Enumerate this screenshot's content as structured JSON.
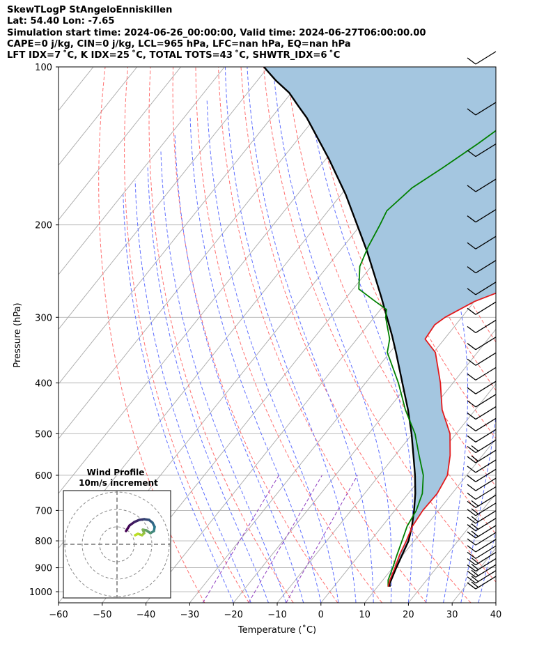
{
  "header": {
    "line1": "SkewTLogP StAngeloEnniskillen",
    "line2": "Lat: 54.40   Lon: -7.65",
    "line3": "Simulation start time: 2024-06-26_00:00:00, Valid time: 2024-06-27T06:00:00.00",
    "line4": "CAPE=0 j/kg, CIN=0 j/kg, LCL=965 hPa, LFC=nan hPa, EQ=nan hPa",
    "line5": "LFT IDX=7 ˚C, K IDX=25 ˚C, TOTAL TOTS=43 ˚C, SHWTR_IDX=6 ˚C"
  },
  "chart_data": {
    "type": "line",
    "subtype": "skew-t log-p diagram",
    "xlabel": "Temperature (˚C)",
    "ylabel": "Pressure (hPa)",
    "xlim": [
      -60,
      40
    ],
    "ylim": [
      1050,
      100
    ],
    "y_scale": "log",
    "xticks": [
      -60,
      -50,
      -40,
      -30,
      -20,
      -10,
      0,
      10,
      20,
      30,
      40
    ],
    "yticks": [
      100,
      200,
      300,
      400,
      500,
      600,
      700,
      800,
      900,
      1000
    ],
    "grid": true,
    "series": [
      {
        "role": "temperature",
        "color": "#e31a1c",
        "points": [
          [
            12.4,
            978
          ],
          [
            11.6,
            950
          ],
          [
            10.5,
            900
          ],
          [
            9.2,
            850
          ],
          [
            8.2,
            800
          ],
          [
            6.9,
            750
          ],
          [
            6.4,
            700
          ],
          [
            6.6,
            650
          ],
          [
            5.6,
            600
          ],
          [
            2.6,
            550
          ],
          [
            -1.4,
            500
          ],
          [
            -7.6,
            450
          ],
          [
            -12.9,
            400
          ],
          [
            -19.6,
            350
          ],
          [
            -24.4,
            330
          ],
          [
            -24.8,
            310
          ],
          [
            -23.8,
            300
          ],
          [
            -20.0,
            280
          ],
          [
            -14.9,
            265
          ],
          [
            -12.2,
            250
          ],
          [
            -9.9,
            230
          ],
          [
            -7.0,
            210
          ],
          [
            -6.0,
            200
          ],
          [
            -3.5,
            185
          ],
          [
            -2.6,
            170
          ],
          [
            -2.0,
            155
          ],
          [
            -1.3,
            145
          ],
          [
            -1.5,
            135
          ],
          [
            0.4,
            125
          ],
          [
            1.8,
            115
          ],
          [
            1.4,
            108
          ],
          [
            3.0,
            100
          ]
        ]
      },
      {
        "role": "dewpoint",
        "color": "#008000",
        "points": [
          [
            12.4,
            978
          ],
          [
            11.2,
            950
          ],
          [
            10.0,
            900
          ],
          [
            8.6,
            850
          ],
          [
            7.2,
            800
          ],
          [
            5.7,
            750
          ],
          [
            4.9,
            700
          ],
          [
            3.2,
            650
          ],
          [
            0.1,
            600
          ],
          [
            -4.5,
            550
          ],
          [
            -9.4,
            500
          ],
          [
            -16.0,
            450
          ],
          [
            -22.5,
            400
          ],
          [
            -30.6,
            350
          ],
          [
            -32.5,
            330
          ],
          [
            -37.4,
            300
          ],
          [
            -38.6,
            290
          ],
          [
            -42.6,
            280
          ],
          [
            -48.7,
            265
          ],
          [
            -52.6,
            240
          ],
          [
            -54.3,
            220
          ],
          [
            -55.6,
            200
          ],
          [
            -56.6,
            188
          ],
          [
            -55.0,
            170
          ],
          [
            -51.5,
            155
          ],
          [
            -48.0,
            140
          ],
          [
            -44.6,
            125
          ],
          [
            -41.5,
            112
          ],
          [
            -38.5,
            100
          ]
        ]
      },
      {
        "role": "parcel_profile",
        "color": "#000000",
        "points": [
          [
            12.8,
            978
          ],
          [
            12.2,
            965
          ],
          [
            10.8,
            900
          ],
          [
            9.8,
            850
          ],
          [
            8.7,
            800
          ],
          [
            6.8,
            750
          ],
          [
            4.4,
            700
          ],
          [
            1.6,
            650
          ],
          [
            -1.8,
            600
          ],
          [
            -5.8,
            550
          ],
          [
            -10.2,
            500
          ],
          [
            -15.4,
            450
          ],
          [
            -21.6,
            400
          ],
          [
            -28.6,
            350
          ],
          [
            -32.6,
            325
          ],
          [
            -37.1,
            300
          ],
          [
            -42.0,
            275
          ],
          [
            -47.5,
            250
          ],
          [
            -53.6,
            225
          ],
          [
            -60.8,
            200
          ],
          [
            -69.0,
            175
          ],
          [
            -79.2,
            150
          ],
          [
            -91.9,
            125
          ],
          [
            -95.8,
            119
          ],
          [
            -100.5,
            112
          ],
          [
            -105.9,
            106
          ],
          [
            -111.0,
            100
          ]
        ]
      }
    ],
    "shaded_region": {
      "between": [
        "parcel_profile",
        "temperature"
      ],
      "color": "#a4c6e0"
    },
    "background_lines": {
      "isotherms": {
        "color": "#aaaaaa",
        "step": 10
      },
      "dry_adiabats": {
        "color": "#ff7070",
        "style": "dashed"
      },
      "moist_adiabats": {
        "color": "#6070ff",
        "style": "dashed"
      },
      "mixing_ratio": {
        "color": "#9040c0",
        "style": "dashed"
      }
    },
    "wind_barbs_hpa": [
      1000,
      975,
      950,
      925,
      900,
      875,
      850,
      825,
      800,
      775,
      750,
      725,
      700,
      675,
      650,
      625,
      600,
      575,
      550,
      525,
      500,
      475,
      450,
      425,
      400,
      375,
      350,
      325,
      300,
      275,
      250,
      225,
      200,
      175,
      150,
      125,
      100
    ]
  },
  "hodograph": {
    "title": "Wind Profile",
    "subtitle": "10m/s increment",
    "color_start": "#440154",
    "color_end": "#bddf26"
  }
}
